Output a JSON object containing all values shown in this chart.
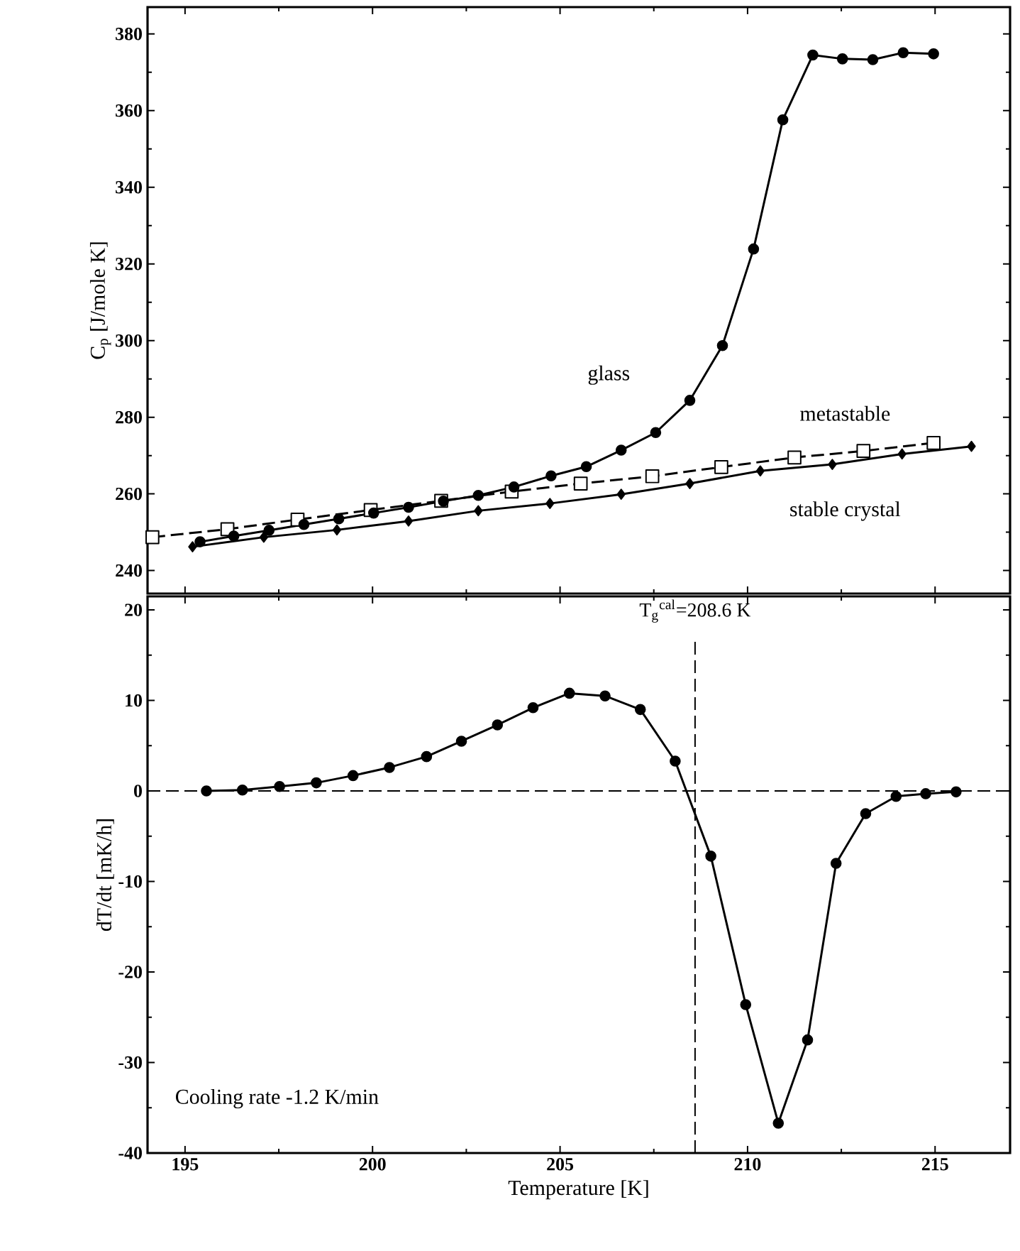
{
  "chart_data": [
    {
      "type": "line",
      "ylabel": "C$_{p}$  [J/mole K]",
      "xlim": [
        194,
        217
      ],
      "ylim": [
        234,
        387
      ],
      "yticks": [
        240,
        260,
        280,
        300,
        320,
        340,
        360,
        380
      ],
      "tick_labels": "y",
      "series": [
        {
          "name": "glass",
          "color": "#000000",
          "marker": "circle",
          "line_style": "solid",
          "x": [
            195.4,
            196.3,
            197.24,
            198.17,
            199.1,
            200.03,
            200.96,
            201.89,
            202.82,
            203.77,
            204.76,
            205.7,
            206.63,
            207.55,
            208.46,
            209.33,
            210.16,
            210.94,
            211.74,
            212.53,
            213.34,
            214.15,
            214.96
          ],
          "values": [
            247.5,
            249,
            250.5,
            252,
            253.5,
            255,
            256.5,
            258.1,
            259.6,
            261.8,
            264.7,
            267.1,
            271.4,
            276,
            284.4,
            298.7,
            323.9,
            357.6,
            374.5,
            373.5,
            373.3,
            375.1,
            374.8
          ]
        },
        {
          "name": "metastable",
          "color": "#000000",
          "marker": "square",
          "line_style": "dashed",
          "x": [
            194.13,
            196.13,
            198,
            199.95,
            201.83,
            203.71,
            205.55,
            207.46,
            209.3,
            211.25,
            213.09,
            214.96
          ],
          "values": [
            248.7,
            250.8,
            253.3,
            255.8,
            258.2,
            260.6,
            262.7,
            264.6,
            267,
            269.5,
            271.2,
            273.3
          ]
        },
        {
          "name": "stable crystal",
          "color": "#000000",
          "marker": "diamond",
          "line_style": "solid",
          "x": [
            195.2,
            197.1,
            199.05,
            200.96,
            202.82,
            204.73,
            206.63,
            208.46,
            210.34,
            212.26,
            214.12,
            215.97
          ],
          "values": [
            246.2,
            248.7,
            250.6,
            252.9,
            255.6,
            257.5,
            259.9,
            262.7,
            266,
            267.7,
            270.4,
            272.4
          ]
        }
      ]
    },
    {
      "type": "line",
      "xlabel": "Temperature  [K]",
      "ylabel": "dT/dt  [mK/h]",
      "xlim": [
        194,
        217
      ],
      "xticks": [
        195,
        200,
        205,
        210,
        215
      ],
      "ylim": [
        -40,
        21.5
      ],
      "yticks": [
        -40,
        -30,
        -20,
        -10,
        0,
        10,
        20
      ],
      "annotations": [
        "Cooling rate  -1.2 K/min"
      ],
      "ref_lines": [
        {
          "axis": "y",
          "value": 0,
          "label": null,
          "line_style": "dashed"
        },
        {
          "axis": "x",
          "value": 208.6,
          "label": "T$_{g}$$^{cal}$=208.6 K",
          "line_style": "dashed"
        }
      ],
      "series": [
        {
          "color": "#000000",
          "marker": "circle",
          "line_style": "solid",
          "x": [
            195.57,
            196.53,
            197.52,
            198.5,
            199.48,
            200.45,
            201.44,
            202.37,
            203.33,
            204.28,
            205.25,
            206.2,
            207.14,
            208.07,
            209.02,
            209.95,
            210.82,
            211.6,
            212.36,
            213.15,
            213.96,
            214.75,
            215.56
          ],
          "values": [
            0,
            0.1,
            0.5,
            0.9,
            1.7,
            2.6,
            3.8,
            5.5,
            7.3,
            9.2,
            10.8,
            10.5,
            9,
            3.3,
            -7.2,
            -23.6,
            -36.7,
            -27.5,
            -8,
            -2.5,
            -0.6,
            -0.3,
            -0.1
          ]
        }
      ]
    }
  ]
}
